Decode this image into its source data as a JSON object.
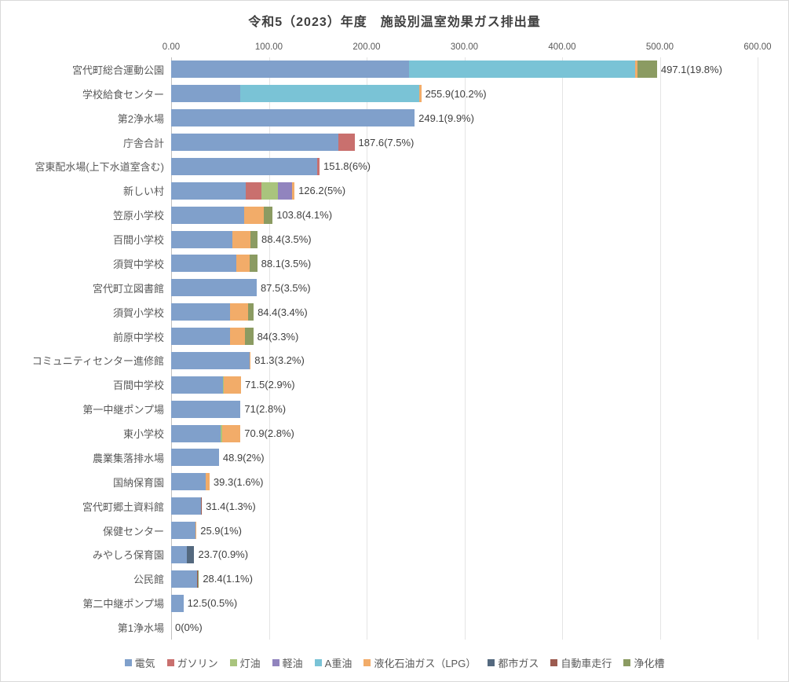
{
  "chart_data": {
    "type": "bar",
    "orientation": "horizontal",
    "stacked": true,
    "title": "令和5（2023）年度　施設別温室効果ガス排出量",
    "unit_note": "values shown as total(t-CO2)(share%)",
    "xlim": [
      0,
      600
    ],
    "x_ticks": [
      "0.00",
      "100.00",
      "200.00",
      "300.00",
      "400.00",
      "500.00",
      "600.00"
    ],
    "grid": true,
    "legend_position": "bottom",
    "series": [
      {
        "name": "電気",
        "color": "#80A0CB"
      },
      {
        "name": "ガソリン",
        "color": "#C9706E"
      },
      {
        "name": "灯油",
        "color": "#A9C47D"
      },
      {
        "name": "軽油",
        "color": "#9184BE"
      },
      {
        "name": "A重油",
        "color": "#7AC3D6"
      },
      {
        "name": "液化石油ガス（LPG）",
        "color": "#F2AC69"
      },
      {
        "name": "都市ガス",
        "color": "#54697F"
      },
      {
        "name": "自動車走行",
        "color": "#9C5B50"
      },
      {
        "name": "浄化槽",
        "color": "#8B9B62"
      }
    ],
    "rows": [
      {
        "category": "宮代町総合運動公園",
        "total": 497.1,
        "label": "497.1(19.8%)",
        "segments": [
          {
            "series": "電気",
            "value": 243
          },
          {
            "series": "A重油",
            "value": 232
          },
          {
            "series": "液化石油ガス（LPG）",
            "value": 2
          },
          {
            "series": "浄化槽",
            "value": 20.1
          }
        ]
      },
      {
        "category": "学校給食センター",
        "total": 255.9,
        "label": "255.9(10.2%)",
        "segments": [
          {
            "series": "電気",
            "value": 71
          },
          {
            "series": "A重油",
            "value": 182.9
          },
          {
            "series": "液化石油ガス（LPG）",
            "value": 2
          }
        ]
      },
      {
        "category": "第2浄水場",
        "total": 249.1,
        "label": "249.1(9.9%)",
        "segments": [
          {
            "series": "電気",
            "value": 249.1
          }
        ]
      },
      {
        "category": "庁舎合計",
        "total": 187.6,
        "label": "187.6(7.5%)",
        "segments": [
          {
            "series": "電気",
            "value": 171
          },
          {
            "series": "ガソリン",
            "value": 16.6
          }
        ]
      },
      {
        "category": "宮東配水場(上下水道室含む)",
        "total": 151.8,
        "label": "151.8(6%)",
        "segments": [
          {
            "series": "電気",
            "value": 149
          },
          {
            "series": "ガソリン",
            "value": 2.8
          }
        ]
      },
      {
        "category": "新しい村",
        "total": 126.2,
        "label": "126.2(5%)",
        "segments": [
          {
            "series": "電気",
            "value": 76
          },
          {
            "series": "ガソリン",
            "value": 16.5
          },
          {
            "series": "灯油",
            "value": 16.5
          },
          {
            "series": "軽油",
            "value": 15
          },
          {
            "series": "液化石油ガス（LPG）",
            "value": 2.2
          }
        ]
      },
      {
        "category": "笠原小学校",
        "total": 103.8,
        "label": "103.8(4.1%)",
        "segments": [
          {
            "series": "電気",
            "value": 74.3
          },
          {
            "series": "液化石油ガス（LPG）",
            "value": 20.7
          },
          {
            "series": "浄化槽",
            "value": 8.8
          }
        ]
      },
      {
        "category": "百間小学校",
        "total": 88.4,
        "label": "88.4(3.5%)",
        "segments": [
          {
            "series": "電気",
            "value": 63
          },
          {
            "series": "液化石油ガス（LPG）",
            "value": 18
          },
          {
            "series": "浄化槽",
            "value": 7.4
          }
        ]
      },
      {
        "category": "須賀中学校",
        "total": 88.1,
        "label": "88.1(3.5%)",
        "segments": [
          {
            "series": "電気",
            "value": 67
          },
          {
            "series": "液化石油ガス（LPG）",
            "value": 13.5
          },
          {
            "series": "浄化槽",
            "value": 7.6
          }
        ]
      },
      {
        "category": "宮代町立図書館",
        "total": 87.5,
        "label": "87.5(3.5%)",
        "segments": [
          {
            "series": "電気",
            "value": 87.5
          }
        ]
      },
      {
        "category": "須賀小学校",
        "total": 84.4,
        "label": "84.4(3.4%)",
        "segments": [
          {
            "series": "電気",
            "value": 60
          },
          {
            "series": "液化石油ガス（LPG）",
            "value": 18.4
          },
          {
            "series": "浄化槽",
            "value": 6
          }
        ]
      },
      {
        "category": "前原中学校",
        "total": 84,
        "label": "84(3.3%)",
        "segments": [
          {
            "series": "電気",
            "value": 60
          },
          {
            "series": "液化石油ガス（LPG）",
            "value": 15.5
          },
          {
            "series": "浄化槽",
            "value": 8.5
          }
        ]
      },
      {
        "category": "コミュニティセンター進修館",
        "total": 81.3,
        "label": "81.3(3.2%)",
        "segments": [
          {
            "series": "電気",
            "value": 80.6
          },
          {
            "series": "液化石油ガス（LPG）",
            "value": 0.7
          }
        ]
      },
      {
        "category": "百間中学校",
        "total": 71.5,
        "label": "71.5(2.9%)",
        "segments": [
          {
            "series": "電気",
            "value": 53
          },
          {
            "series": "灯油",
            "value": 1.2
          },
          {
            "series": "液化石油ガス（LPG）",
            "value": 17.3
          }
        ]
      },
      {
        "category": "第一中継ポンプ場",
        "total": 71,
        "label": "71(2.8%)",
        "segments": [
          {
            "series": "電気",
            "value": 71
          }
        ]
      },
      {
        "category": "東小学校",
        "total": 70.9,
        "label": "70.9(2.8%)",
        "segments": [
          {
            "series": "電気",
            "value": 51
          },
          {
            "series": "灯油",
            "value": 1.2
          },
          {
            "series": "液化石油ガス（LPG）",
            "value": 18.7
          }
        ]
      },
      {
        "category": "農業集落排水場",
        "total": 48.9,
        "label": "48.9(2%)",
        "segments": [
          {
            "series": "電気",
            "value": 48.9
          }
        ]
      },
      {
        "category": "国納保育園",
        "total": 39.3,
        "label": "39.3(1.6%)",
        "segments": [
          {
            "series": "電気",
            "value": 35.3
          },
          {
            "series": "液化石油ガス（LPG）",
            "value": 4
          }
        ]
      },
      {
        "category": "宮代町郷土資料館",
        "total": 31.4,
        "label": "31.4(1.3%)",
        "segments": [
          {
            "series": "電気",
            "value": 30.5
          },
          {
            "series": "自動車走行",
            "value": 0.9
          }
        ]
      },
      {
        "category": "保健センター",
        "total": 25.9,
        "label": "25.9(1%)",
        "segments": [
          {
            "series": "電気",
            "value": 25
          },
          {
            "series": "液化石油ガス（LPG）",
            "value": 0.9
          }
        ]
      },
      {
        "category": "みやしろ保育園",
        "total": 23.7,
        "label": "23.7(0.9%)",
        "segments": [
          {
            "series": "電気",
            "value": 16
          },
          {
            "series": "都市ガス",
            "value": 7.7
          }
        ]
      },
      {
        "category": "公民館",
        "total": 28.4,
        "label": "28.4(1.1%)",
        "segments": [
          {
            "series": "電気",
            "value": 26.5
          },
          {
            "series": "自動車走行",
            "value": 0.8
          },
          {
            "series": "浄化槽",
            "value": 1.1
          }
        ]
      },
      {
        "category": "第二中継ポンプ場",
        "total": 12.5,
        "label": "12.5(0.5%)",
        "segments": [
          {
            "series": "電気",
            "value": 12.5
          }
        ]
      },
      {
        "category": "第1浄水場",
        "total": 0,
        "label": "0(0%)",
        "segments": []
      }
    ]
  }
}
